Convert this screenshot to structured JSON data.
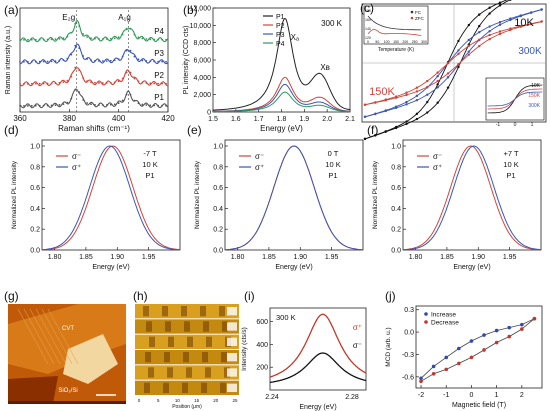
{
  "figure": {
    "panels": {
      "a": "(a)",
      "b": "(b)",
      "c": "(c)",
      "d": "(d)",
      "e": "(e)",
      "f": "(f)",
      "g": "(g)",
      "h": "(h)",
      "i": "(i)",
      "j": "(j)"
    }
  },
  "chart_data": [
    {
      "id": "a",
      "type": "line",
      "xlabel": "Raman shifts (cm⁻¹)",
      "ylabel": "Raman intensity (a.u.)",
      "xlim": [
        360,
        420
      ],
      "xticks": [
        "360",
        "380",
        "400",
        "420"
      ],
      "annotations": [
        "E₂g",
        "A₁g"
      ],
      "peaks": [
        383,
        404
      ],
      "series": [
        {
          "name": "P1",
          "color": "#555555",
          "offset": 0
        },
        {
          "name": "P2",
          "color": "#d0453a",
          "offset": 1
        },
        {
          "name": "P3",
          "color": "#3a56b8",
          "offset": 2
        },
        {
          "name": "P4",
          "color": "#2e9a5a",
          "offset": 3
        }
      ]
    },
    {
      "id": "b",
      "type": "line",
      "xlabel": "Energy (eV)",
      "ylabel": "PL intensity (CCD cts)",
      "xlim": [
        1.5,
        2.1
      ],
      "ylim": [
        0,
        12000
      ],
      "xticks": [
        "1.5",
        "1.6",
        "1.7",
        "1.8",
        "1.9",
        "2.0",
        "2.1"
      ],
      "yticks": [
        "0",
        "2,000",
        "4,000",
        "6,000",
        "8,000",
        "10,000",
        "12,000"
      ],
      "annotations": [
        "300 K",
        "Xₐ",
        "Xʙ"
      ],
      "series": [
        {
          "name": "P1",
          "color": "#222222",
          "peak": 10800,
          "xb": 3600
        },
        {
          "name": "P2",
          "color": "#d0453a",
          "peak": 4000,
          "xb": 1400
        },
        {
          "name": "P3",
          "color": "#3a56b8",
          "peak": 3200,
          "xb": 900
        },
        {
          "name": "P4",
          "color": "#2e9a5a",
          "peak": 2300,
          "xb": 600
        }
      ]
    },
    {
      "id": "c",
      "type": "scatter",
      "labels": [
        "10K",
        "300K",
        "150K"
      ],
      "inset_temp": {
        "xlabel": "Temperature (K)",
        "xticks": [
          "0",
          "50",
          "100",
          "150",
          "200",
          "250",
          "300"
        ],
        "yticks": [
          "180",
          "160",
          "140",
          "120"
        ],
        "legend": [
          "FC",
          "ZFC"
        ]
      },
      "inset_field": {
        "labels": [
          "10K",
          "150K",
          "300K"
        ],
        "xticks": [
          "-1",
          "0",
          "1"
        ]
      }
    },
    {
      "id": "d",
      "type": "line",
      "xlabel": "Energy (eV)",
      "ylabel": "Normalized PL intensity",
      "xlim": [
        1.78,
        2.0
      ],
      "ylim": [
        0,
        1.0
      ],
      "xticks": [
        "1.80",
        "1.85",
        "1.90",
        "1.95"
      ],
      "yticks": [
        "0.0",
        "0.2",
        "0.4",
        "0.6",
        "0.8",
        "1.0"
      ],
      "conditions": [
        "-7 T",
        "10 K",
        "P1"
      ],
      "series": [
        {
          "name": "σ⁻",
          "color": "#d0453a",
          "center": 1.893
        },
        {
          "name": "σ⁺",
          "color": "#3a56b8",
          "center": 1.888
        }
      ]
    },
    {
      "id": "e",
      "type": "line",
      "xlabel": "Energy (eV)",
      "ylabel": "Normalized PL intensity",
      "xlim": [
        1.78,
        2.0
      ],
      "ylim": [
        0,
        1.0
      ],
      "xticks": [
        "1.80",
        "1.85",
        "1.90",
        "1.95"
      ],
      "yticks": [
        "0.0",
        "0.2",
        "0.4",
        "0.6",
        "0.8",
        "1.0"
      ],
      "conditions": [
        "0 T",
        "10 K",
        "P1"
      ],
      "series": [
        {
          "name": "σ⁻",
          "color": "#d0453a",
          "center": 1.89
        },
        {
          "name": "σ⁺",
          "color": "#3a56b8",
          "center": 1.89
        }
      ]
    },
    {
      "id": "f",
      "type": "line",
      "xlabel": "Energy (eV)",
      "ylabel": "Normalized PL intensity",
      "xlim": [
        1.78,
        2.0
      ],
      "ylim": [
        0,
        1.0
      ],
      "xticks": [
        "1.80",
        "1.85",
        "1.90",
        "1.95"
      ],
      "yticks": [
        "0.0",
        "0.2",
        "0.4",
        "0.6",
        "0.8",
        "1.0"
      ],
      "conditions": [
        "+7 T",
        "10 K",
        "P1"
      ],
      "series": [
        {
          "name": "σ⁻",
          "color": "#d0453a",
          "center": 1.888
        },
        {
          "name": "σ⁺",
          "color": "#3a56b8",
          "center": 1.893
        }
      ]
    },
    {
      "id": "i",
      "type": "line",
      "xlabel": "Energy (eV)",
      "ylabel": "Intensity (cts/s)",
      "xticks": [
        "2.24",
        "2.28"
      ],
      "yticks": [
        "200",
        "400",
        "600"
      ],
      "ylim": [
        0,
        720
      ],
      "conditions": [
        "300 K"
      ],
      "series": [
        {
          "name": "σ⁺",
          "color": "#c0392b",
          "peak": 640
        },
        {
          "name": "σ⁻",
          "color": "#111111",
          "peak": 300
        }
      ]
    },
    {
      "id": "j",
      "type": "scatter",
      "xlabel": "Magnetic field (T)",
      "ylabel": "MCD (arb. u.)",
      "xlim": [
        -2.2,
        2.8
      ],
      "ylim": [
        -0.75,
        0.35
      ],
      "xticks": [
        "-2",
        "-1",
        "0",
        "1",
        "2"
      ],
      "yticks": [
        "0.3",
        "0.0",
        "-0.3",
        "-0.6"
      ],
      "series": [
        {
          "name": "Increase",
          "color": "#2f4ab0",
          "x": [
            -2,
            -1.5,
            -1,
            -0.5,
            0,
            0.5,
            1,
            1.5,
            2,
            2.5
          ],
          "y": [
            -0.62,
            -0.46,
            -0.34,
            -0.22,
            -0.12,
            -0.04,
            0.02,
            0.06,
            0.1,
            0.18
          ]
        },
        {
          "name": "Decrease",
          "color": "#c0392b",
          "x": [
            -2,
            -1.5,
            -1,
            -0.5,
            0,
            0.5,
            1,
            1.5,
            2,
            2.5
          ],
          "y": [
            -0.66,
            -0.56,
            -0.5,
            -0.42,
            -0.34,
            -0.24,
            -0.14,
            -0.06,
            0.04,
            0.18
          ]
        }
      ]
    }
  ],
  "images": {
    "g": {
      "labels": [
        "CVT",
        "SiO₂/Si"
      ],
      "scalebar": "—"
    },
    "h": {
      "xlabel": "Position (μm)",
      "xticks": [
        "0",
        "5",
        "10",
        "15",
        "20",
        "25"
      ]
    }
  }
}
